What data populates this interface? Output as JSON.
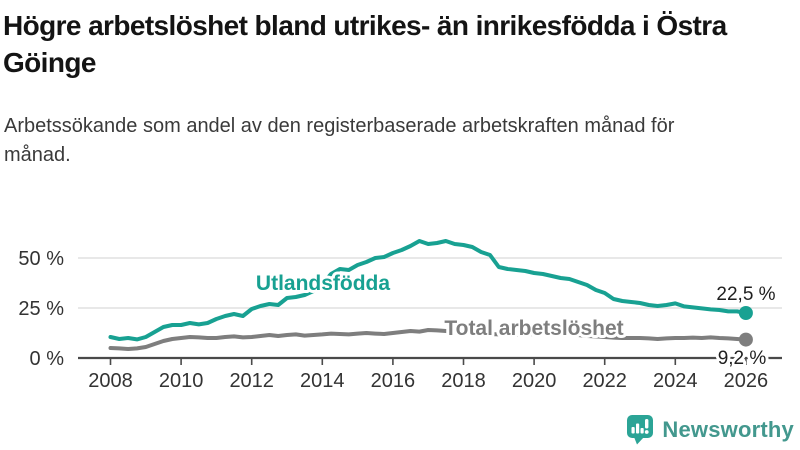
{
  "header": {
    "title": "Högre arbetslöshet bland utrikes- än inrikesfödda i Östra Göinge",
    "subtitle": "Arbetssökande som andel av den registerbaserade arbetskraften månad för månad."
  },
  "chart_data": {
    "type": "line",
    "title": "Högre arbetslöshet bland utrikes- än inrikesfödda i Östra Göinge",
    "xlabel": "",
    "ylabel": "",
    "unit": "%",
    "grid": "horizontal",
    "x_start": 2008,
    "x_step_years": 0.25,
    "x_ticks": [
      2008,
      2010,
      2012,
      2014,
      2016,
      2018,
      2020,
      2022,
      2024,
      2026
    ],
    "xlim": [
      2008,
      2026
    ],
    "ylim": [
      0,
      62
    ],
    "y_ticks": [
      {
        "value": 0,
        "label": "0 %"
      },
      {
        "value": 25,
        "label": "25 %"
      },
      {
        "value": 50,
        "label": "50 %"
      }
    ],
    "series": [
      {
        "name": "Utlandsfödda",
        "color": "#18a192",
        "end_value": 22.5,
        "end_label": "22,5 %",
        "values": [
          10.5,
          9.5,
          10.0,
          9.3,
          10.5,
          13.0,
          15.5,
          16.5,
          16.5,
          17.5,
          16.8,
          17.5,
          19.5,
          21.0,
          22.0,
          21.0,
          24.5,
          26.0,
          27.0,
          26.5,
          30.0,
          30.5,
          31.5,
          33.5,
          37.0,
          42.0,
          44.5,
          44.0,
          46.5,
          48.0,
          50.0,
          50.5,
          52.5,
          54.0,
          56.0,
          58.5,
          57.0,
          57.5,
          58.5,
          57.0,
          56.5,
          55.5,
          53.0,
          51.5,
          45.5,
          44.5,
          44.0,
          43.5,
          42.5,
          42.0,
          41.0,
          40.0,
          39.5,
          38.0,
          36.5,
          34.0,
          32.5,
          29.5,
          28.5,
          28.0,
          27.5,
          26.5,
          26.0,
          26.5,
          27.3,
          25.8,
          25.3,
          24.8,
          24.3,
          24.0,
          23.3,
          23.3,
          22.5
        ]
      },
      {
        "name": "Total arbetslöshet",
        "color": "#7e7e7e",
        "end_value": 9.2,
        "end_label": "9,2 %",
        "values": [
          5.0,
          4.8,
          4.5,
          4.8,
          5.5,
          7.0,
          8.5,
          9.5,
          10.0,
          10.5,
          10.3,
          10.0,
          10.0,
          10.5,
          10.8,
          10.3,
          10.5,
          11.0,
          11.5,
          11.0,
          11.5,
          11.8,
          11.2,
          11.5,
          11.8,
          12.2,
          12.0,
          11.8,
          12.2,
          12.5,
          12.2,
          12.0,
          12.5,
          13.0,
          13.5,
          13.2,
          14.0,
          13.8,
          13.5,
          13.0,
          12.8,
          12.5,
          12.2,
          12.0,
          11.8,
          11.5,
          11.5,
          11.8,
          12.0,
          13.0,
          12.8,
          12.5,
          12.0,
          11.5,
          11.0,
          10.8,
          10.5,
          10.2,
          10.0,
          10.0,
          10.0,
          9.8,
          9.5,
          9.8,
          10.0,
          10.0,
          10.2,
          10.0,
          10.3,
          10.0,
          9.8,
          9.5,
          9.2
        ]
      }
    ],
    "colors": {
      "axis": "#4a4a4a",
      "gridline": "#d9d9d9",
      "tick_text": "#333333",
      "annotation_text": "#1f1f1f"
    }
  },
  "footer": {
    "brand": "Newsworthy",
    "logo_icon": "bar-chart-speech-bubble-icon",
    "brand_color": "#2ba496"
  }
}
